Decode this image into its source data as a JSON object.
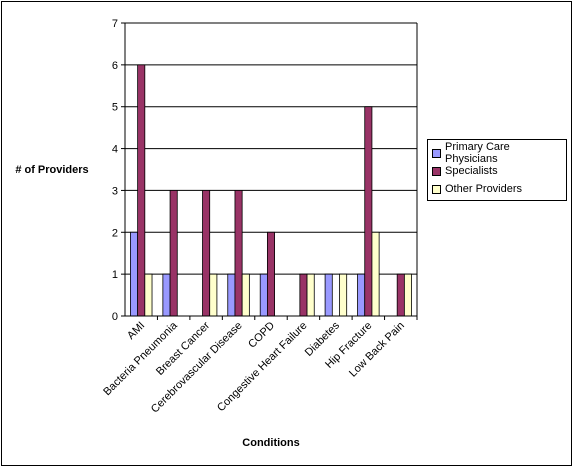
{
  "chart_data": {
    "type": "bar",
    "xlabel": "Conditions",
    "ylabel": "# of Providers",
    "ylim": [
      0,
      7
    ],
    "yticks": [
      0,
      1,
      2,
      3,
      4,
      5,
      6,
      7
    ],
    "grid": true,
    "legend_position": "right",
    "categories": [
      "AMI",
      "Bacteria Pneumonia",
      "Breast Cancer",
      "Cerebrovascular Disease",
      "COPD",
      "Congestive Heart Failure",
      "Diabetes",
      "Hip Fracture",
      "Low Back Pain"
    ],
    "series": [
      {
        "name": "Primary Care Physicians",
        "color": "#9999FF",
        "values": [
          2,
          1,
          0,
          1,
          1,
          0,
          1,
          1,
          0
        ]
      },
      {
        "name": "Specialists",
        "color": "#993366",
        "values": [
          6,
          3,
          3,
          3,
          2,
          1,
          0,
          5,
          1
        ]
      },
      {
        "name": "Other Providers",
        "color": "#FFFFCC",
        "values": [
          1,
          0,
          1,
          1,
          0,
          1,
          1,
          2,
          1
        ]
      }
    ]
  }
}
